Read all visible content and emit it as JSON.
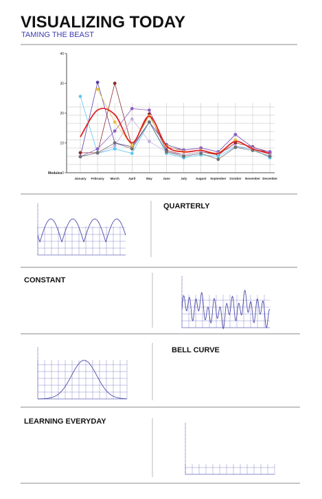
{
  "header": {
    "title": "VISUALIZING TODAY",
    "subtitle": "TAMING THE BEAST"
  },
  "chart_data": {
    "type": "line",
    "ylabel": "Modules",
    "categories": [
      "January",
      "February",
      "March",
      "April",
      "May",
      "June",
      "July",
      "August",
      "September",
      "October",
      "November",
      "December"
    ],
    "ylim": [
      0,
      40
    ],
    "yticks": [
      0,
      10,
      20,
      30,
      40
    ],
    "grid": true,
    "series": [
      {
        "color": "#5b3fa8",
        "values": [
          5.4,
          30.3,
          10,
          8.7,
          17,
          9.4,
          7.6,
          8.3,
          7,
          12.8,
          8.5,
          7
        ]
      },
      {
        "color": "#8b2b2b",
        "values": [
          6.7,
          6.7,
          30,
          8.7,
          19.7,
          7.5,
          6,
          7,
          6,
          10,
          8.7,
          6.5
        ]
      },
      {
        "color": "#5bc8f0",
        "values": [
          25.6,
          6.5,
          8,
          6.5,
          17,
          6.5,
          5,
          6,
          5.5,
          8.7,
          8,
          5
        ]
      },
      {
        "color": "#9060c0",
        "values": [
          5.4,
          8,
          14,
          21.5,
          21,
          8.5,
          7.6,
          8.3,
          7,
          12.8,
          8.5,
          7
        ]
      },
      {
        "color": "#e8c040",
        "values": [
          null,
          28,
          17,
          9,
          19,
          9,
          7,
          7.5,
          6.5,
          11,
          8,
          6
        ]
      },
      {
        "color": "#c0b0e0",
        "values": [
          null,
          6.5,
          9,
          18,
          10.5,
          7,
          6,
          7,
          6.5,
          9,
          8,
          6
        ]
      },
      {
        "color": "#707070",
        "values": [
          5.4,
          6.7,
          10,
          8,
          17,
          7,
          5.5,
          6.5,
          4.5,
          8.5,
          7.5,
          5.5
        ]
      },
      {
        "color": "#e02020",
        "smooth": true,
        "values": [
          12,
          21,
          19.5,
          10,
          19,
          9,
          7,
          7.5,
          6.5,
          10.5,
          8,
          6.5
        ]
      }
    ]
  },
  "panels": [
    {
      "label": "QUARTERLY"
    },
    {
      "label": "CONSTANT"
    },
    {
      "label": "BELL CURVE"
    },
    {
      "label": "LEARNING EVERYDAY"
    }
  ]
}
